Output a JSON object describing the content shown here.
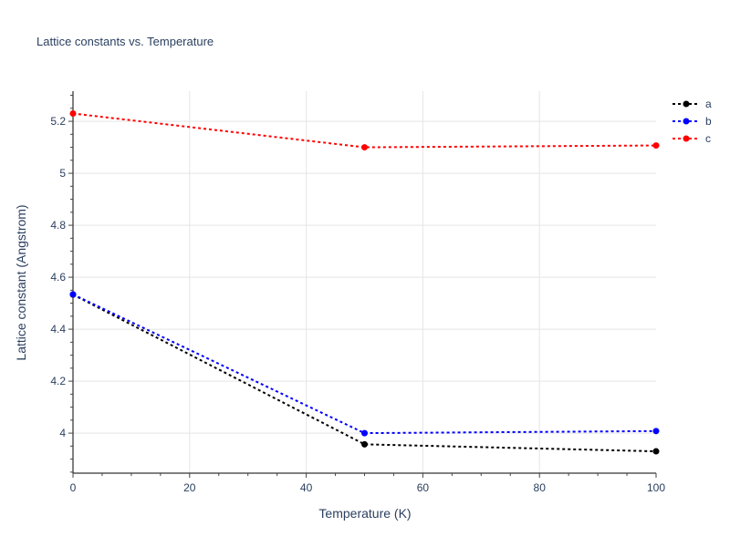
{
  "chart_data": {
    "type": "line",
    "title": "Lattice constants vs. Temperature",
    "xlabel": "Temperature (K)",
    "ylabel": "Lattice constant (Angstrom)",
    "xlim": [
      0,
      100
    ],
    "ylim": [
      3.846,
      5.316
    ],
    "x_ticks": [
      0,
      20,
      40,
      60,
      80,
      100
    ],
    "y_ticks": [
      4,
      4.2,
      4.4,
      4.6,
      4.8,
      5,
      5.2
    ],
    "y_tick_labels": [
      "4",
      "4.2",
      "4.4",
      "4.6",
      "4.8",
      "5",
      "5.2"
    ],
    "grid": true,
    "legend_position": "top-right",
    "x": [
      0,
      50,
      100
    ],
    "series": [
      {
        "name": "a",
        "color": "#000000",
        "values": [
          4.533,
          3.957,
          3.93
        ]
      },
      {
        "name": "b",
        "color": "#0000ff",
        "values": [
          4.534,
          4.0,
          4.008
        ]
      },
      {
        "name": "c",
        "color": "#ff0000",
        "values": [
          5.23,
          5.1,
          5.107
        ]
      }
    ],
    "line_style": "dotted with markers"
  }
}
